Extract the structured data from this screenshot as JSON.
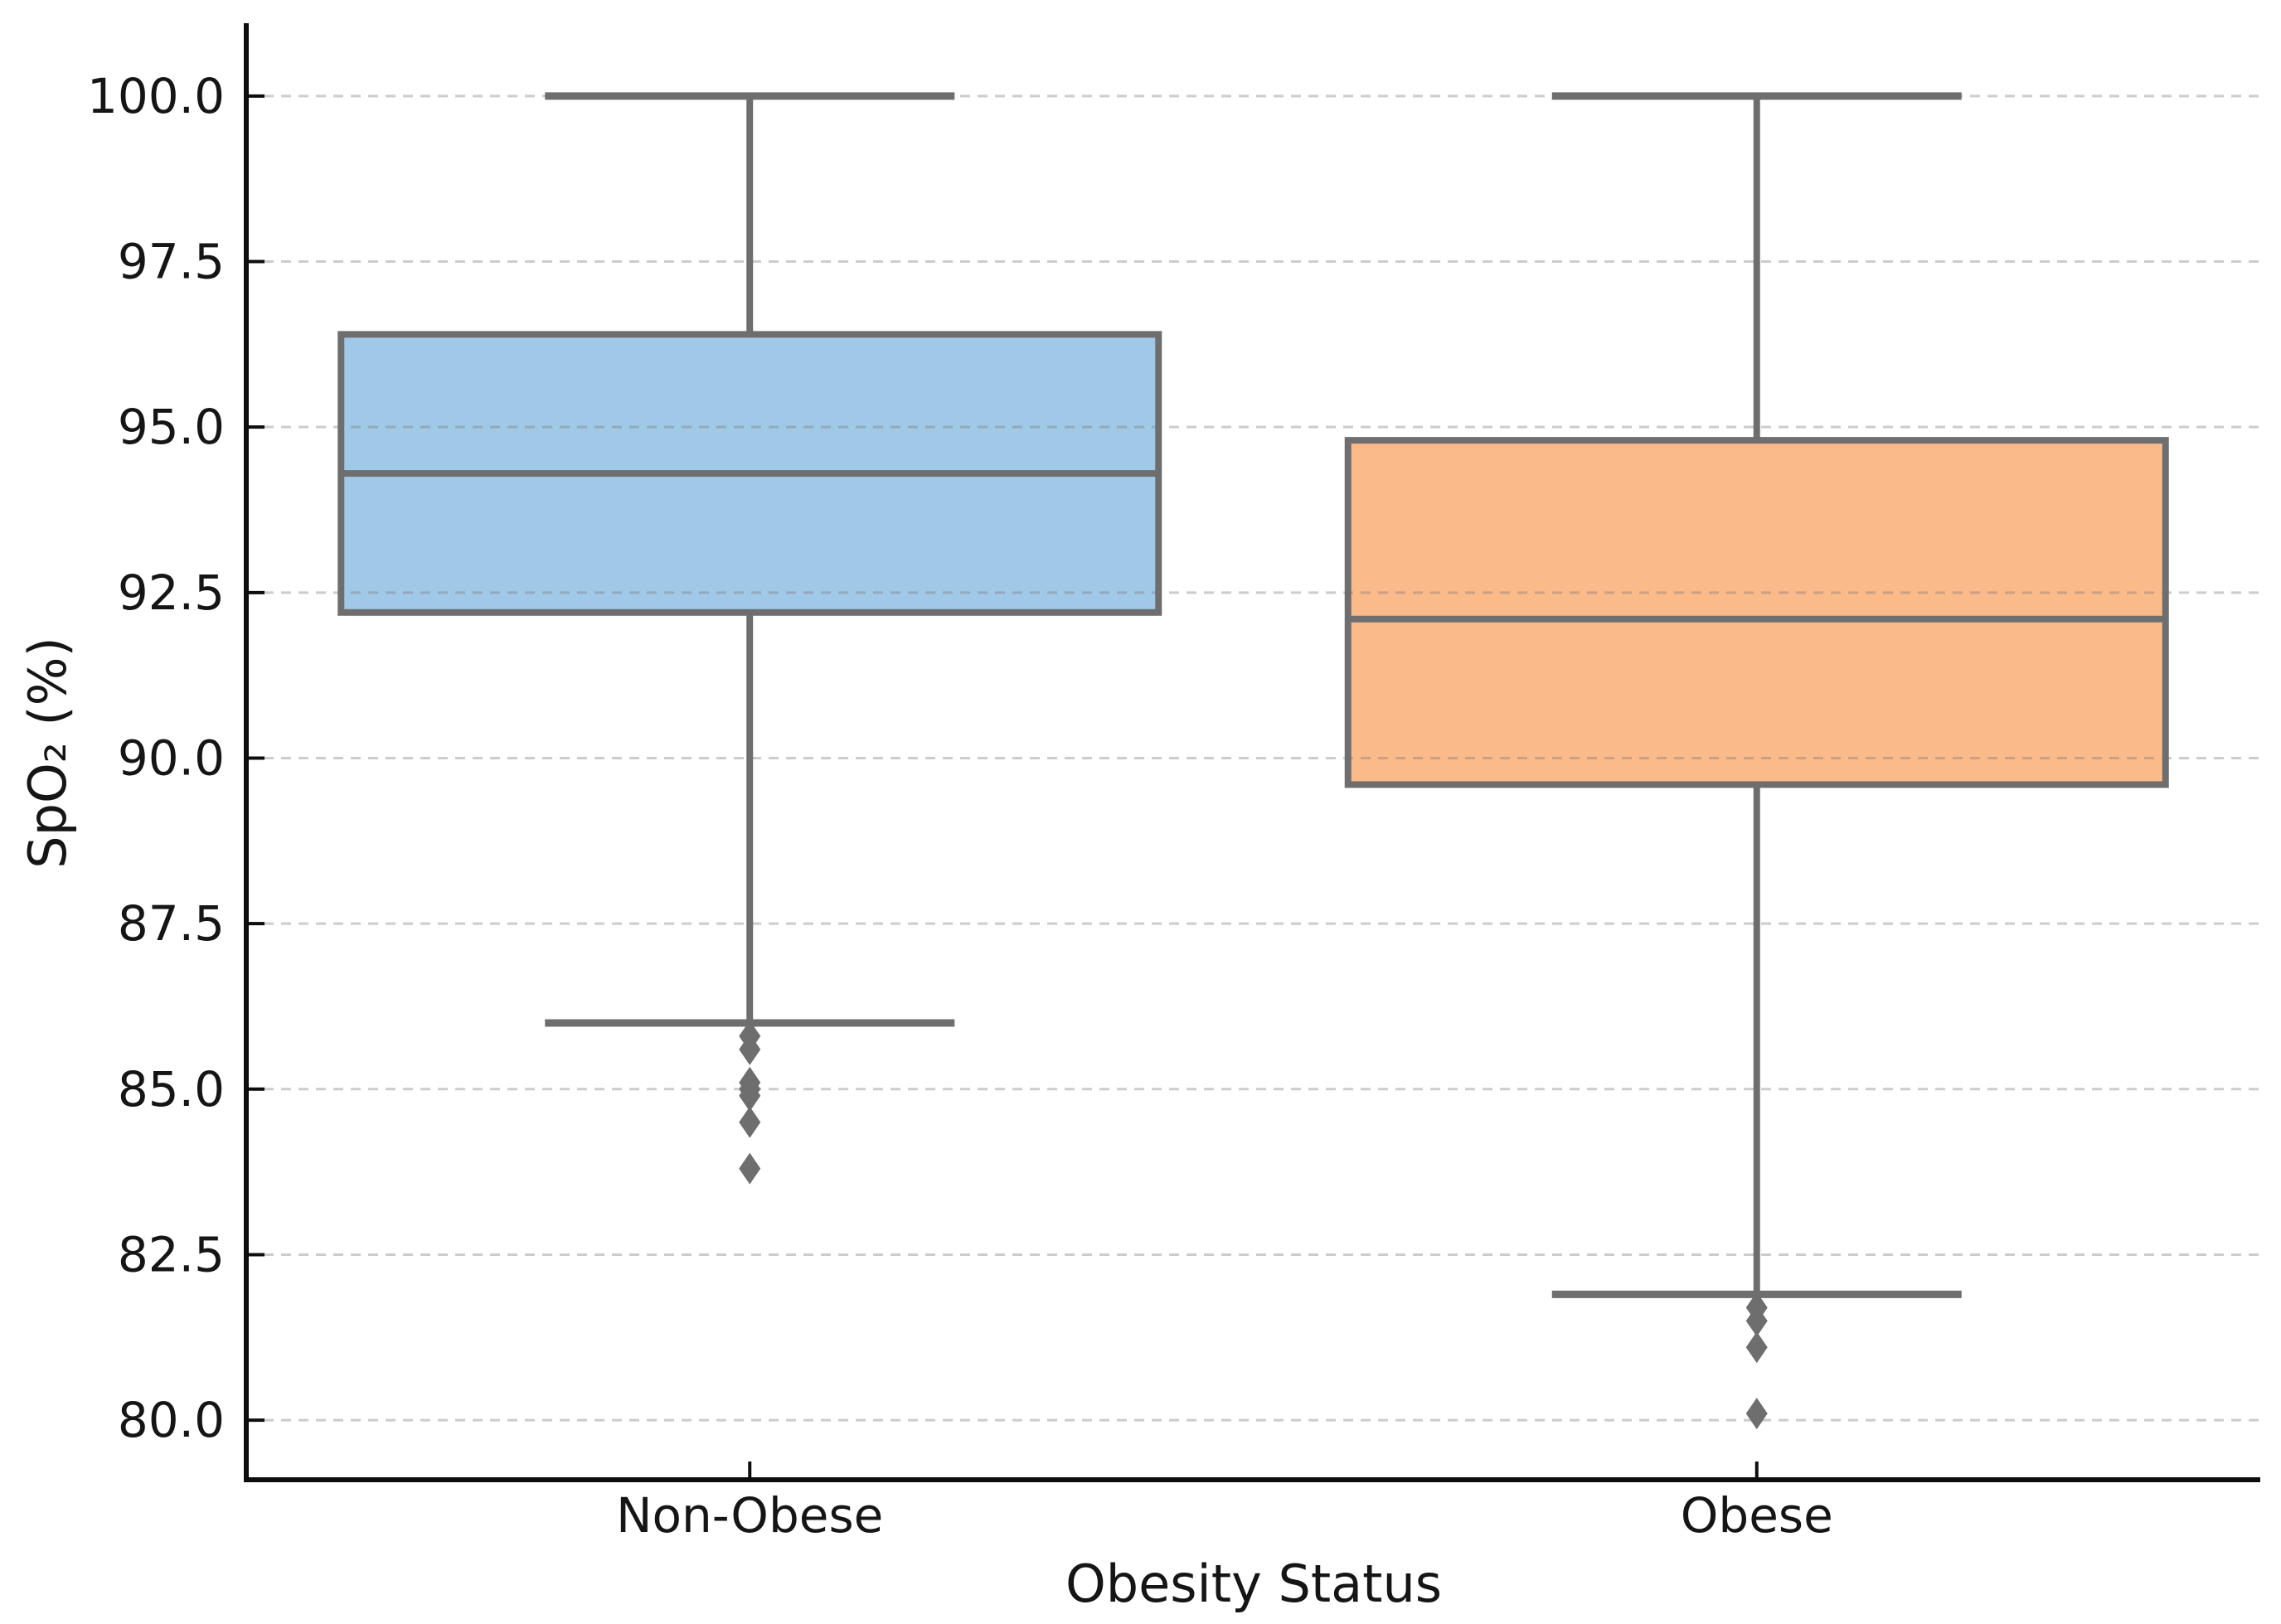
{
  "chart_data": {
    "type": "box",
    "title": "",
    "xlabel": "Obesity Status",
    "ylabel": "SpO₂ (%)",
    "categories": [
      "Non-Obese",
      "Obese"
    ],
    "y_tick_labels": [
      "100.0",
      "97.5",
      "95.0",
      "92.5",
      "90.0",
      "87.5",
      "85.0",
      "82.5",
      "80.0"
    ],
    "y_tick_values": [
      100.0,
      97.5,
      95.0,
      92.5,
      90.0,
      87.5,
      85.0,
      82.5,
      80.0
    ],
    "ylim": [
      79.1,
      101.1
    ],
    "grid": "horizontal-dashed",
    "legend_position": "none",
    "marker": "diamond",
    "boxes": [
      {
        "category": "Non-Obese",
        "whisker_low": 86.0,
        "q1": 92.2,
        "median": 94.3,
        "q3": 96.4,
        "whisker_high": 100.0,
        "outliers": [
          85.8,
          85.6,
          85.1,
          85.0,
          84.9,
          84.5,
          83.8
        ],
        "fill_color": "#A0C9E8"
      },
      {
        "category": "Obese",
        "whisker_low": 81.9,
        "q1": 89.6,
        "median": 92.1,
        "q3": 94.8,
        "whisker_high": 100.0,
        "outliers": [
          81.7,
          81.5,
          81.1,
          80.1
        ],
        "fill_color": "#FBBA8A"
      }
    ],
    "colors": {
      "box_edge": "#6E6E6E",
      "whisker": "#6E6E6E",
      "median": "#6E6E6E",
      "flier": "#6E6E6E",
      "grid_line": "#cdcdcd",
      "spine": "#0d0d0d",
      "text": "#151515"
    }
  }
}
